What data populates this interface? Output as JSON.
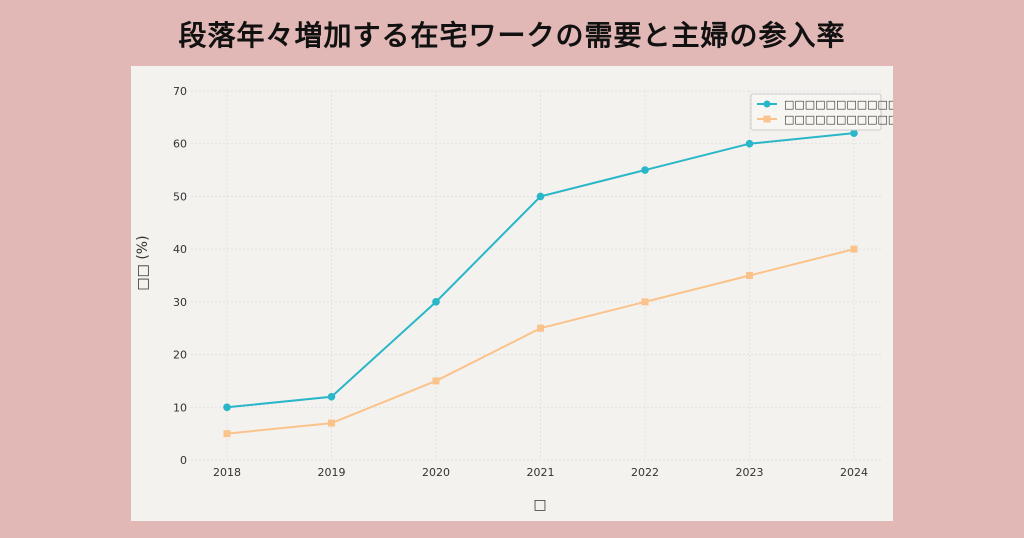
{
  "title": "段落年々増加する在宅ワークの需要と主婦の参入率",
  "chart_data": {
    "type": "line",
    "x": [
      "2018",
      "2019",
      "2020",
      "2021",
      "2022",
      "2023",
      "2024"
    ],
    "series": [
      {
        "name": "□□□□□□□□□□□□□",
        "color": "#2ab6c9",
        "marker": "circle",
        "values": [
          10,
          12,
          30,
          50,
          55,
          60,
          62
        ]
      },
      {
        "name": "□□□□□□□□□□□□",
        "color": "#fbc38c",
        "marker": "square",
        "values": [
          5,
          7,
          15,
          25,
          30,
          35,
          40
        ]
      }
    ],
    "ylabel": "□□ (%)",
    "xlabel": "□",
    "ylim": [
      0,
      70
    ],
    "yticks": [
      0,
      10,
      20,
      30,
      40,
      50,
      60,
      70
    ],
    "grid": true,
    "legend_position": "top-right"
  }
}
